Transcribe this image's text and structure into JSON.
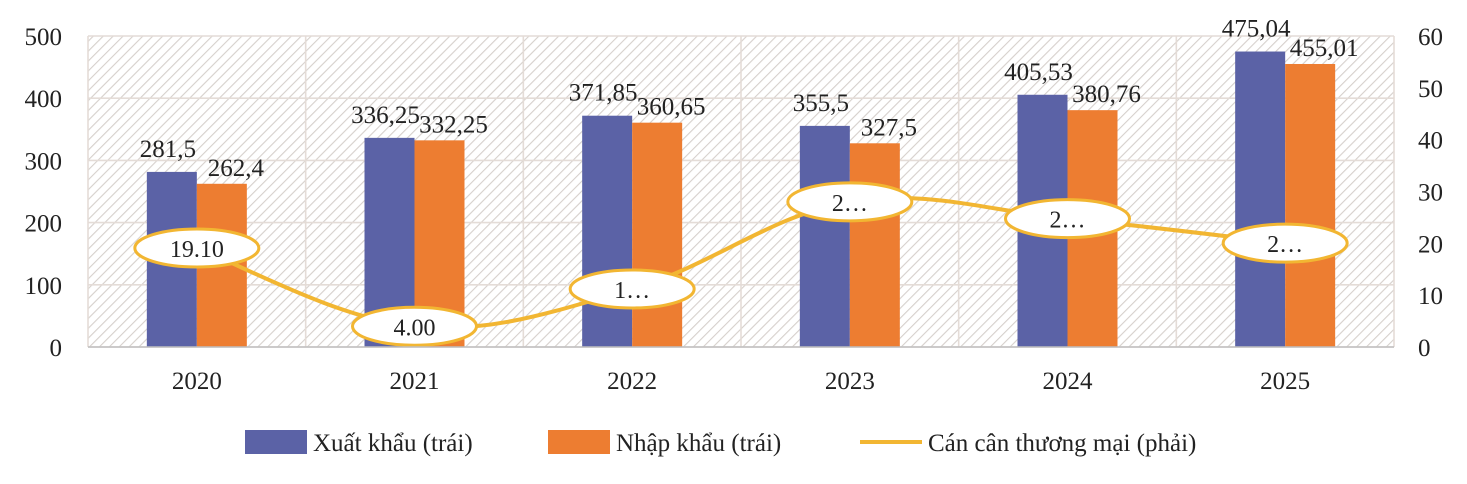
{
  "chart_data": {
    "type": "bar",
    "title": "",
    "categories": [
      "2020",
      "2021",
      "2022",
      "2023",
      "2024",
      "2025"
    ],
    "series": [
      {
        "name": "Xuất khẩu (trái)",
        "kind": "bar",
        "axis": "left",
        "color": "#5b62a6",
        "values": [
          281.5,
          336.25,
          371.85,
          355.5,
          405.53,
          475.04
        ],
        "labels": [
          "281,5",
          "336,25",
          "371,85",
          "355,5",
          "405,53",
          "475,04"
        ]
      },
      {
        "name": "Nhập khẩu (trái)",
        "kind": "bar",
        "axis": "left",
        "color": "#ed7d31",
        "values": [
          262.4,
          332.25,
          360.65,
          327.5,
          380.76,
          455.01
        ],
        "labels": [
          "262,4",
          "332,25",
          "360,65",
          "327,5",
          "380,76",
          "455,01"
        ]
      },
      {
        "name": "Cán cân thương mại (phải)",
        "kind": "line",
        "axis": "right",
        "color": "#f2b632",
        "values": [
          19.1,
          4.0,
          11.2,
          28.0,
          24.77,
          20.03
        ],
        "labels": [
          "19.10",
          "4.00",
          "1…",
          "2…",
          "2…",
          "2…"
        ]
      }
    ],
    "y_left": {
      "min": 0,
      "max": 500,
      "ticks": [
        "0",
        "100",
        "200",
        "300",
        "400",
        "500"
      ]
    },
    "y_right": {
      "min": 0,
      "max": 60,
      "ticks": [
        "0",
        "10",
        "20",
        "30",
        "40",
        "50",
        "60"
      ]
    },
    "xlabel": "",
    "ylabel": "",
    "legend_position": "bottom",
    "grid": true
  }
}
